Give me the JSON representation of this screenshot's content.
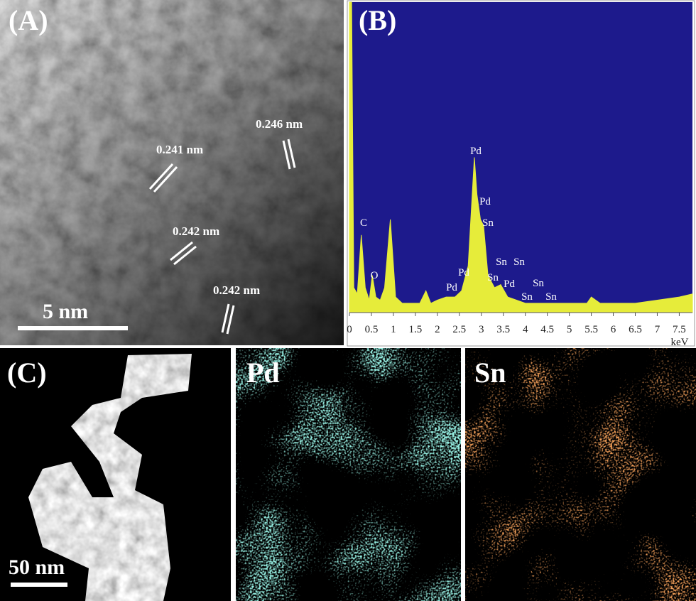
{
  "panel_a": {
    "label": "(A)",
    "lattice_spacings": [
      "0.246 nm",
      "0.241 nm",
      "0.242 nm",
      "0.242 nm"
    ],
    "scale_bar": "5 nm"
  },
  "chart_data": {
    "type": "area",
    "title": "(B)",
    "x": [
      0,
      0.05,
      0.1,
      0.18,
      0.27,
      0.36,
      0.45,
      0.52,
      0.6,
      0.7,
      0.8,
      0.93,
      1.05,
      1.2,
      1.4,
      1.6,
      1.74,
      1.85,
      2.0,
      2.2,
      2.4,
      2.55,
      2.7,
      2.8,
      2.84,
      2.9,
      2.98,
      3.05,
      3.15,
      3.3,
      3.44,
      3.6,
      3.8,
      4.0,
      4.3,
      4.6,
      5.0,
      5.4,
      5.5,
      5.7,
      6.0,
      6.5,
      7.0,
      7.5,
      7.8
    ],
    "values": [
      100,
      100,
      8,
      6,
      25,
      8,
      4,
      12,
      5,
      4,
      8,
      30,
      5,
      3,
      3,
      3,
      7,
      3,
      4,
      5,
      5,
      7,
      15,
      40,
      50,
      38,
      30,
      28,
      12,
      8,
      9,
      5,
      4,
      3,
      3,
      3,
      3,
      3,
      5,
      3,
      3,
      3,
      4,
      5,
      6
    ],
    "color": "#e6ec3a",
    "xlim": [
      0,
      7.8
    ],
    "ylim": [
      0,
      100
    ],
    "xticks": [
      0,
      0.5,
      1,
      1.5,
      2,
      2.5,
      3,
      3.5,
      4,
      4.5,
      5,
      5.5,
      6,
      6.5,
      7,
      7.5
    ],
    "xlabel": "keV",
    "annotations": [
      "C",
      "O",
      "Pd",
      "Pd",
      "Sn",
      "Sn",
      "Sn",
      "Pd",
      "Sn",
      "Pd",
      "Pd",
      "Sn",
      "Sn",
      "Sn"
    ]
  },
  "panel_c": {
    "label": "(C)",
    "scale_bar": "50 nm"
  },
  "maps": [
    "Pd",
    "Sn"
  ]
}
